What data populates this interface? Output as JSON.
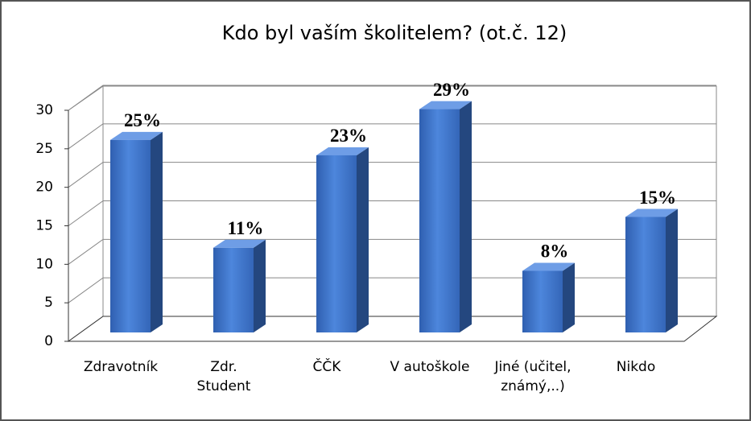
{
  "chart_data": {
    "type": "bar3d",
    "title": "Kdo byl vaším školitelem? (ot.č. 12)",
    "categories": [
      "Zdravotník",
      "Zdr. Student",
      "ČČK",
      "V autoškole",
      "Jiné (učitel, známý,..)",
      "Nikdo"
    ],
    "values": [
      25,
      11,
      23,
      29,
      8,
      15
    ],
    "value_labels": [
      "25%",
      "11%",
      "23%",
      "29%",
      "8%",
      "15%"
    ],
    "color": "#3f74c9",
    "ylim": [
      0,
      30
    ],
    "yticks": [
      0,
      5,
      10,
      15,
      20,
      25,
      30
    ],
    "grid": true
  }
}
